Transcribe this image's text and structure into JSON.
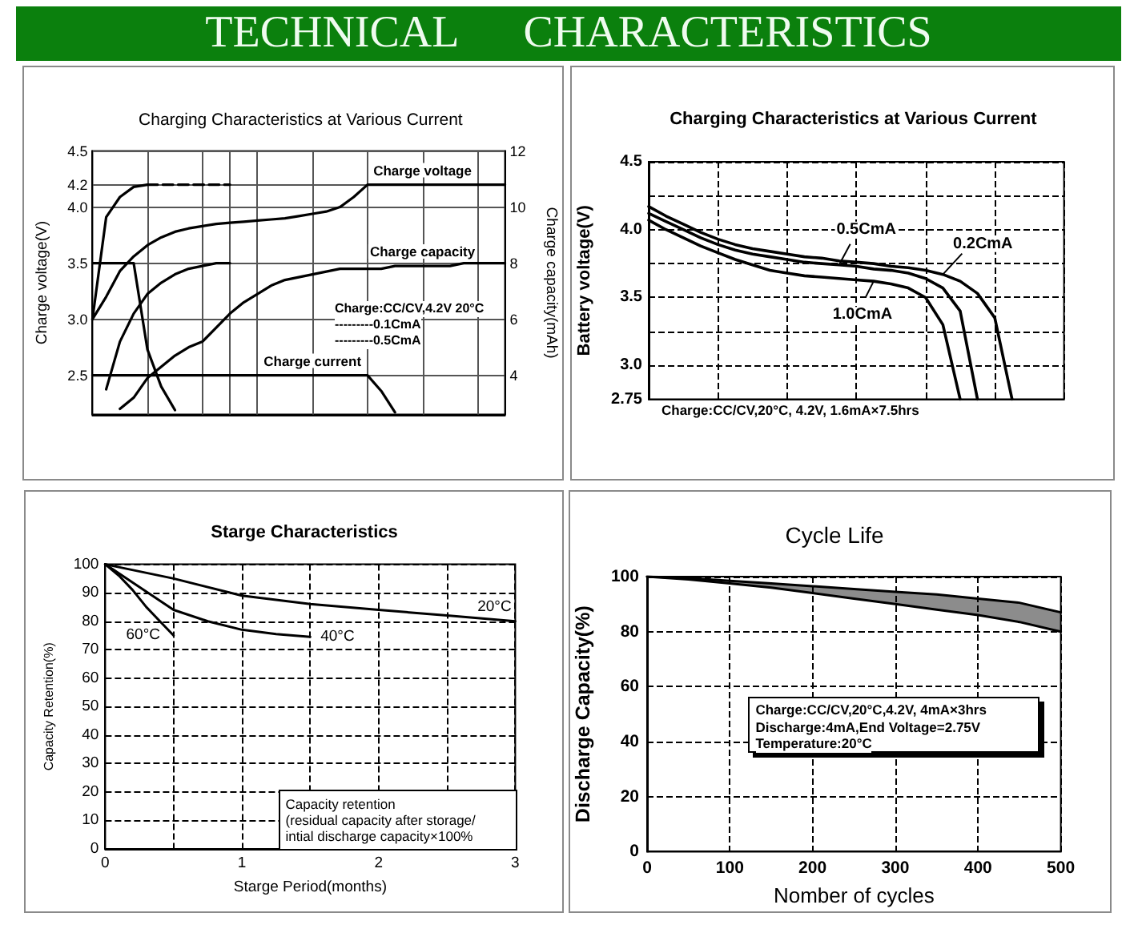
{
  "chart_data": [
    {
      "type": "other",
      "title": "TECHNICAL CHARACTERISTICS"
    },
    {
      "type": "line",
      "title": "Charging Characteristics at Various Current",
      "ylabel": "Charge voltage(V)",
      "y2label": "Charge capacity(mAh)",
      "categories": [
        null,
        null,
        null,
        null,
        null,
        null,
        null,
        null,
        null,
        null,
        null,
        null,
        null,
        null,
        null,
        null,
        null,
        null,
        null,
        null,
        null,
        null,
        null,
        null,
        null,
        null,
        null,
        null,
        null,
        null,
        null
      ],
      "ylim": [
        2.15,
        4.5
      ],
      "yticks": [
        2.5,
        {
          "value": 3,
          "label": "3.0"
        },
        3.5,
        {
          "value": 4,
          "label": "4.0"
        },
        4.2,
        4.5
      ],
      "y2lim": [
        2.6,
        12
      ],
      "y2ticks": [
        4,
        6,
        8,
        10,
        12
      ],
      "tick_labels": "y",
      "grid": true,
      "marker": "none",
      "annotations": [
        "Charge:CC/CV,4.2V 20°C",
        "---------0.1CmA",
        "---------0.5CmA"
      ],
      "series": [
        {
          "color": "#000000",
          "values": [
            3.0,
            3.91,
            4.09,
            4.18,
            4.2,
            null,
            null,
            null,
            null,
            null,
            null,
            null,
            null,
            null,
            null,
            null,
            null,
            null,
            null,
            null,
            null,
            null,
            null,
            null,
            null,
            null,
            null,
            null,
            null,
            null,
            null
          ]
        },
        {
          "name": "Charge voltage",
          "color": "#000000",
          "values": [
            3.0,
            3.2,
            3.43,
            3.56,
            3.66,
            3.73,
            3.78,
            3.81,
            3.83,
            3.85,
            3.86,
            3.87,
            3.88,
            3.89,
            3.9,
            3.92,
            3.94,
            3.96,
            4.0,
            4.09,
            4.2,
            4.2,
            4.2,
            4.2,
            4.2,
            4.2,
            4.2,
            4.2,
            4.2,
            4.2,
            4.2
          ]
        },
        {
          "color": "#000000",
          "values": [
            3.5,
            3.5,
            3.5,
            3.5,
            2.73,
            2.4,
            2.19,
            null,
            null,
            null,
            null,
            null,
            null,
            null,
            null,
            null,
            null,
            null,
            null,
            null,
            null,
            null,
            null,
            null,
            null,
            null,
            null,
            null,
            null,
            null,
            null
          ]
        },
        {
          "name": "Charge current",
          "color": "#000000",
          "values": [
            2.5,
            2.5,
            2.5,
            2.5,
            2.5,
            2.5,
            2.5,
            2.5,
            2.5,
            2.5,
            2.5,
            2.5,
            2.5,
            2.5,
            2.5,
            2.5,
            2.5,
            2.5,
            2.5,
            2.5,
            2.5,
            2.36,
            2.17,
            null,
            null,
            null,
            null,
            null,
            null,
            null,
            null
          ]
        },
        {
          "color": "#000000",
          "axis": "y2",
          "values": [
            null,
            3.5,
            5.2,
            6.2,
            6.9,
            7.3,
            7.6,
            7.8,
            7.9,
            8.0,
            8.0,
            null,
            null,
            null,
            null,
            null,
            null,
            null,
            null,
            null,
            null,
            null,
            null,
            null,
            null,
            null,
            null,
            null,
            null,
            null,
            null
          ]
        },
        {
          "name": "Charge capacity",
          "color": "#000000",
          "axis": "y2",
          "values": [
            null,
            null,
            2.8,
            3.2,
            3.9,
            4.3,
            4.7,
            5.0,
            5.2,
            5.7,
            6.2,
            6.6,
            6.9,
            7.2,
            7.4,
            7.5,
            7.6,
            7.7,
            7.8,
            7.8,
            7.8,
            7.8,
            7.9,
            7.9,
            7.9,
            7.9,
            7.9,
            8.0,
            8.0,
            8.0,
            8.0
          ]
        },
        {
          "color": "#000000",
          "line_style": "dashed",
          "values": [
            null,
            null,
            null,
            null,
            4.2,
            4.2,
            4.2,
            4.2,
            4.2,
            4.2,
            4.2,
            null,
            null,
            null,
            null,
            null,
            null,
            null,
            null,
            null,
            null,
            null,
            null,
            null,
            null,
            null,
            null,
            null,
            null,
            null,
            null
          ]
        }
      ]
    },
    {
      "type": "line",
      "title": "Charging Characteristics at Various Current",
      "ylabel": "Battery voltage(V)",
      "categories": [
        null,
        null,
        null,
        null,
        null,
        null,
        null,
        null,
        null,
        null,
        null,
        null,
        null,
        null,
        null,
        null,
        null,
        null,
        null,
        null,
        null,
        null,
        null,
        null,
        null
      ],
      "ylim": [
        2.75,
        4.5
      ],
      "yticks": [
        2.75,
        {
          "value": 3,
          "label": "3.0"
        },
        {
          "value": 3.25,
          "label": null
        },
        3.5,
        {
          "value": 3.75,
          "label": null
        },
        {
          "value": 4,
          "label": "4.0"
        },
        {
          "value": 4.25,
          "label": null
        },
        4.5
      ],
      "tick_labels": "y",
      "grid": true,
      "marker": "none",
      "annotations": [
        "Charge:CC/CV,20°C, 4.2V, 1.6mA×7.5hrs"
      ],
      "series": [
        {
          "name": "0.2CmA",
          "color": "#000000",
          "values": [
            4.17,
            4.1,
            4.04,
            3.98,
            3.93,
            3.89,
            3.86,
            3.84,
            3.82,
            3.8,
            3.79,
            3.77,
            3.76,
            3.75,
            3.73,
            3.72,
            3.7,
            3.67,
            3.62,
            3.53,
            3.35,
            2.75,
            null,
            null,
            null
          ]
        },
        {
          "name": "0.5CmA",
          "color": "#000000",
          "values": [
            4.12,
            4.06,
            4.0,
            3.94,
            3.89,
            3.85,
            3.82,
            3.8,
            3.78,
            3.76,
            3.75,
            3.74,
            3.73,
            3.71,
            3.7,
            3.68,
            3.64,
            3.57,
            3.4,
            2.75,
            null,
            null,
            null,
            null,
            null
          ]
        },
        {
          "name": "1.0CmA",
          "color": "#000000",
          "values": [
            4.07,
            4.0,
            3.94,
            3.88,
            3.83,
            3.78,
            3.74,
            3.7,
            3.68,
            3.66,
            3.65,
            3.64,
            3.63,
            3.62,
            3.6,
            3.57,
            3.5,
            3.3,
            2.75,
            null,
            null,
            null,
            null,
            null,
            null
          ]
        }
      ]
    },
    {
      "type": "line",
      "title": "Starge Characteristics",
      "xlabel": "Starge Period(months)",
      "ylabel": "Capacity Retention(%)",
      "xlim": [
        0,
        3
      ],
      "xticks": [
        0,
        {
          "value": 0.5,
          "label": null
        },
        1,
        {
          "value": 1.5,
          "label": null
        },
        2,
        {
          "value": 2.5,
          "label": null
        },
        3
      ],
      "ylim": [
        0,
        100
      ],
      "yticks": [
        0,
        10,
        20,
        30,
        40,
        50,
        60,
        70,
        80,
        90,
        100
      ],
      "grid": true,
      "marker": "none",
      "annotations": [
        "Capacity retention",
        "(residual capacity after storage/",
        "intial discharge capacity×100%"
      ],
      "series": [
        {
          "name": "20°C",
          "color": "#000000",
          "x": [
            0,
            0.5,
            1,
            1.5,
            2,
            2.5,
            3
          ],
          "values": [
            100,
            95,
            89,
            86,
            84,
            82,
            80
          ]
        },
        {
          "name": "40°C",
          "color": "#000000",
          "x": [
            0,
            0.25,
            0.5,
            0.75,
            1,
            1.25,
            1.5
          ],
          "values": [
            100,
            92,
            84,
            80,
            77,
            75.5,
            74.5
          ]
        },
        {
          "name": "60°C",
          "color": "#000000",
          "x": [
            0,
            0.1,
            0.2,
            0.3,
            0.4,
            0.5
          ],
          "values": [
            100,
            96,
            91,
            85,
            80,
            75
          ]
        }
      ]
    },
    {
      "type": "line",
      "title": "Cycle Life",
      "xlabel": "Nomber of cycles",
      "ylabel": "Discharge Capacity(%)",
      "xlim": [
        0,
        500
      ],
      "xticks": [
        0,
        100,
        200,
        300,
        400,
        500
      ],
      "ylim": [
        0,
        100
      ],
      "yticks": [
        0,
        20,
        40,
        60,
        80,
        100
      ],
      "grid": true,
      "marker": "none",
      "annotations": [
        "Charge:CC/CV,20°C,4.2V, 4mA×3hrs",
        "Discharge:4mA,End Voltage=2.75V",
        "Temperature:20°C"
      ],
      "series": [
        {
          "color": "#000000",
          "x": [
            0,
            50,
            100,
            150,
            200,
            250,
            300,
            350,
            400,
            450,
            500
          ],
          "values": [
            100,
            99.5,
            98.5,
            97.5,
            96.5,
            95.5,
            94.5,
            93.5,
            92,
            90.5,
            87
          ],
          "lower": [
            100,
            99,
            97.5,
            96,
            94,
            92,
            90,
            88,
            86,
            83.5,
            80
          ],
          "upper": [
            100,
            99.5,
            98.5,
            97.5,
            96.5,
            95.5,
            94.5,
            93.5,
            92,
            90.5,
            87
          ]
        },
        {
          "color": "#000000",
          "x": [
            0,
            50,
            100,
            150,
            200,
            250,
            300,
            350,
            400,
            450,
            500
          ],
          "values": [
            100,
            99,
            97.5,
            96,
            94,
            92,
            90,
            88,
            86,
            83.5,
            80
          ]
        }
      ]
    }
  ]
}
